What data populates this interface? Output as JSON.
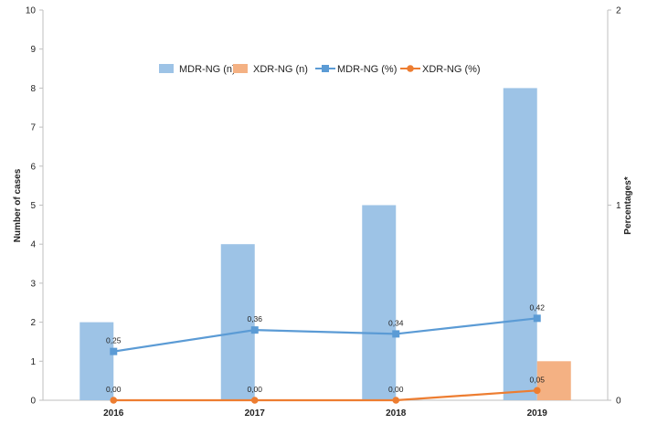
{
  "chart_data": {
    "type": "bar",
    "categories": [
      "2016",
      "2017",
      "2018",
      "2019"
    ],
    "series": [
      {
        "name": "MDR-NG (n)",
        "kind": "bar",
        "axis": "left",
        "color": "#9dc3e6",
        "values": [
          2,
          4,
          5,
          8
        ]
      },
      {
        "name": "XDR-NG (n)",
        "kind": "bar",
        "axis": "left",
        "color": "#f4b183",
        "values": [
          0,
          0,
          0,
          1
        ]
      },
      {
        "name": "MDR-NG (%)",
        "kind": "line",
        "marker": "square",
        "axis": "right",
        "color": "#5b9bd5",
        "values": [
          0.25,
          0.36,
          0.34,
          0.42
        ],
        "labels": [
          "0,25",
          "0,36",
          "0,34",
          "0,42"
        ]
      },
      {
        "name": "XDR-NG (%)",
        "kind": "line",
        "marker": "circle",
        "axis": "right",
        "color": "#ed7d31",
        "values": [
          0.0,
          0.0,
          0.0,
          0.05
        ],
        "labels": [
          "0,00",
          "0,00",
          "0,00",
          "0,05"
        ]
      }
    ],
    "title": "",
    "xlabel": "",
    "ylabel": "Number of cases",
    "y2label": "Percentages*",
    "ylim": [
      0,
      10
    ],
    "y2lim": [
      0,
      2
    ],
    "yticks": [
      "0",
      "1",
      "2",
      "3",
      "4",
      "5",
      "6",
      "7",
      "8",
      "9",
      "10"
    ],
    "y2ticks": [
      "0",
      "1",
      "2"
    ],
    "legend_position": "top-center",
    "grid": false
  }
}
